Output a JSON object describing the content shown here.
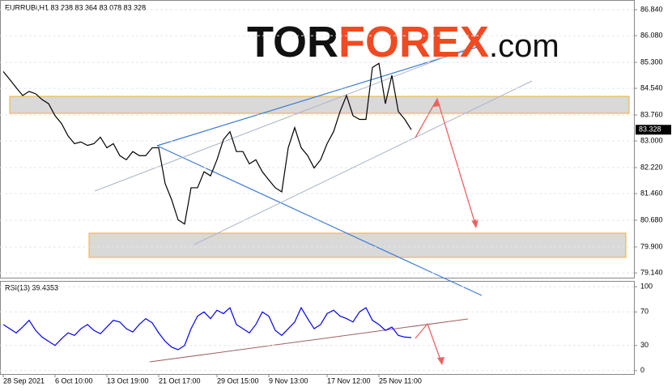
{
  "logo": {
    "parts": [
      "TOR",
      "FOREX",
      ".com"
    ]
  },
  "chart_data": [
    {
      "type": "line",
      "title": "EURRUBi,H1  83.238 83.364 83.078 83.328",
      "categories": [
        "28 Sep 2021",
        null,
        null,
        null,
        null,
        null,
        null,
        null,
        "6 Oct 10:00",
        null,
        null,
        null,
        null,
        null,
        null,
        null,
        "13 Oct 19:00",
        null,
        null,
        null,
        null,
        null,
        null,
        null,
        "21 Oct 17:00",
        null,
        null,
        null,
        null,
        null,
        null,
        null,
        null,
        "29 Oct 15:00",
        null,
        null,
        null,
        null,
        null,
        null,
        null,
        "9 Nov 13:00",
        null,
        null,
        null,
        null,
        null,
        null,
        null,
        null,
        "17 Nov 12:00",
        null,
        null,
        null,
        null,
        null,
        null,
        null,
        "25 Nov 11:00",
        null,
        null,
        null,
        null,
        null
      ],
      "series": [
        {
          "name": "EURRUBi",
          "color": "#000000",
          "values": [
            85.03,
            84.8,
            84.56,
            84.33,
            84.45,
            84.38,
            84.21,
            84.09,
            83.74,
            83.51,
            83.15,
            82.92,
            82.97,
            82.87,
            82.92,
            83.11,
            82.8,
            82.92,
            82.57,
            82.45,
            82.69,
            82.57,
            82.57,
            82.8,
            82.8,
            81.75,
            81.28,
            80.69,
            80.57,
            81.63,
            81.63,
            82.1,
            81.98,
            82.45,
            83.04,
            83.27,
            82.69,
            82.69,
            82.33,
            82.45,
            82.1,
            81.86,
            81.63,
            81.51,
            82.8,
            83.39,
            82.8,
            82.57,
            82.21,
            82.45,
            82.92,
            83.27,
            83.86,
            84.33,
            83.74,
            83.63,
            83.63,
            85.15,
            85.27,
            84.09,
            84.92,
            83.86,
            83.63,
            83.328
          ]
        }
      ],
      "last_price": {
        "value": 83.328,
        "label": "83.328"
      },
      "ylim": [
        79.0,
        87.1
      ],
      "yticks": [
        {
          "value": 86.84,
          "label": "86.840"
        },
        {
          "value": 86.08,
          "label": "86.080"
        },
        {
          "value": 85.3,
          "label": "85.300"
        },
        {
          "value": 84.54,
          "label": "84.540"
        },
        {
          "value": 83.76,
          "label": "83.760"
        },
        {
          "value": 83.0,
          "label": "83.000"
        },
        {
          "value": 82.22,
          "label": "82.220"
        },
        {
          "value": 81.46,
          "label": "81.460"
        },
        {
          "value": 80.68,
          "label": "80.680"
        },
        {
          "value": 79.9,
          "label": "79.900"
        },
        {
          "value": 79.14,
          "label": "79.140"
        }
      ],
      "grid": true
    },
    {
      "type": "line",
      "title": "RSI(13) 39.4353",
      "series": [
        {
          "name": "RSI(13)",
          "color": "#0000ff",
          "values": [
            55,
            50,
            45,
            52,
            60,
            48,
            40,
            35,
            30,
            38,
            45,
            42,
            50,
            55,
            48,
            44,
            52,
            60,
            58,
            50,
            46,
            55,
            62,
            57,
            45,
            35,
            28,
            25,
            30,
            50,
            65,
            70,
            62,
            72,
            68,
            75,
            55,
            50,
            45,
            55,
            70,
            65,
            48,
            42,
            50,
            58,
            75,
            62,
            50,
            55,
            68,
            72,
            65,
            62,
            58,
            70,
            75,
            60,
            55,
            48,
            52,
            42,
            40,
            39.4353
          ]
        }
      ],
      "ylim": [
        -4,
        106
      ],
      "yticks": [
        100,
        70,
        30,
        0
      ],
      "grid": true
    }
  ]
}
